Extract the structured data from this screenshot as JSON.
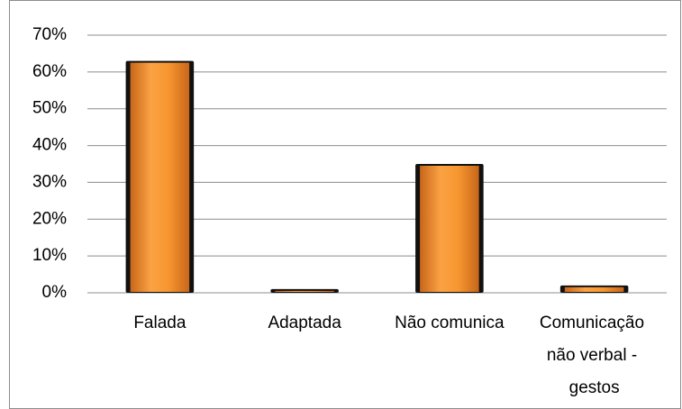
{
  "chart_data": {
    "type": "bar",
    "categories": [
      "Falada",
      "Adaptada",
      "Não comunica",
      "Comunicação não verbal - gestos"
    ],
    "values": [
      63,
      1,
      35,
      2
    ],
    "color": "#f7962f",
    "ylim": [
      0,
      70
    ],
    "yticks": [
      {
        "value": 0,
        "label": "0%"
      },
      {
        "value": 10,
        "label": "10%"
      },
      {
        "value": 20,
        "label": "20%"
      },
      {
        "value": 30,
        "label": "30%"
      },
      {
        "value": 40,
        "label": "40%"
      },
      {
        "value": 50,
        "label": "50%"
      },
      {
        "value": 60,
        "label": "60%"
      },
      {
        "value": 70,
        "label": "70%"
      }
    ],
    "grid": true
  }
}
